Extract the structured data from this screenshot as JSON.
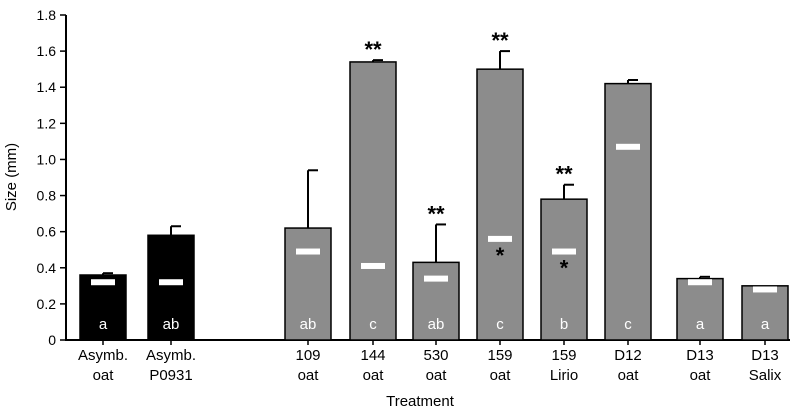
{
  "chart_data": {
    "type": "bar",
    "xlabel": "Treatment",
    "ylabel": "Size (mm)",
    "ylim": [
      0,
      1.8
    ],
    "yticks": [
      "0",
      "0.2",
      "0.4",
      "0.6",
      "0.8",
      "1.0",
      "1.2",
      "1.4",
      "1.6",
      "1.8"
    ],
    "grid": false,
    "legend": "none",
    "colors": {
      "black_bars": "#000000",
      "gray_bars": "#8c8c8c",
      "marker": "#ffffff"
    },
    "bars": [
      {
        "label_line1": "Asymb.",
        "label_line2": "oat",
        "value": 0.36,
        "error": 0.01,
        "marker": 0.32,
        "letter": "a",
        "stars_top": "",
        "star_inside": "",
        "color": "black"
      },
      {
        "label_line1": "Asymb.",
        "label_line2": "P0931",
        "value": 0.58,
        "error": 0.05,
        "marker": 0.32,
        "letter": "ab",
        "stars_top": "",
        "star_inside": "",
        "color": "black"
      },
      {
        "label_line1": "109",
        "label_line2": "oat",
        "value": 0.62,
        "error": 0.32,
        "marker": 0.49,
        "letter": "ab",
        "stars_top": "",
        "star_inside": "",
        "color": "gray"
      },
      {
        "label_line1": "144",
        "label_line2": "oat",
        "value": 1.54,
        "error": 0.01,
        "marker": 0.41,
        "letter": "c",
        "stars_top": "**",
        "star_inside": "",
        "color": "gray"
      },
      {
        "label_line1": "530",
        "label_line2": "oat",
        "value": 0.43,
        "error": 0.21,
        "marker": 0.34,
        "letter": "ab",
        "stars_top": "**",
        "star_inside": "",
        "color": "gray"
      },
      {
        "label_line1": "159",
        "label_line2": "oat",
        "value": 1.5,
        "error": 0.1,
        "marker": 0.56,
        "letter": "c",
        "stars_top": "**",
        "star_inside": "*",
        "color": "gray"
      },
      {
        "label_line1": "159",
        "label_line2": "Lirio",
        "value": 0.78,
        "error": 0.08,
        "marker": 0.49,
        "letter": "b",
        "stars_top": "**",
        "star_inside": "*",
        "color": "gray"
      },
      {
        "label_line1": "D12",
        "label_line2": "oat",
        "value": 1.42,
        "error": 0.02,
        "marker": 1.07,
        "letter": "c",
        "stars_top": "",
        "star_inside": "",
        "color": "gray"
      },
      {
        "label_line1": "D13",
        "label_line2": "oat",
        "value": 0.34,
        "error": 0.01,
        "marker": 0.32,
        "letter": "a",
        "stars_top": "",
        "star_inside": "",
        "color": "gray"
      },
      {
        "label_line1": "D13",
        "label_line2": "Salix",
        "value": 0.3,
        "error": 0.0,
        "marker": 0.28,
        "letter": "a",
        "stars_top": "",
        "star_inside": "",
        "color": "gray"
      }
    ]
  }
}
